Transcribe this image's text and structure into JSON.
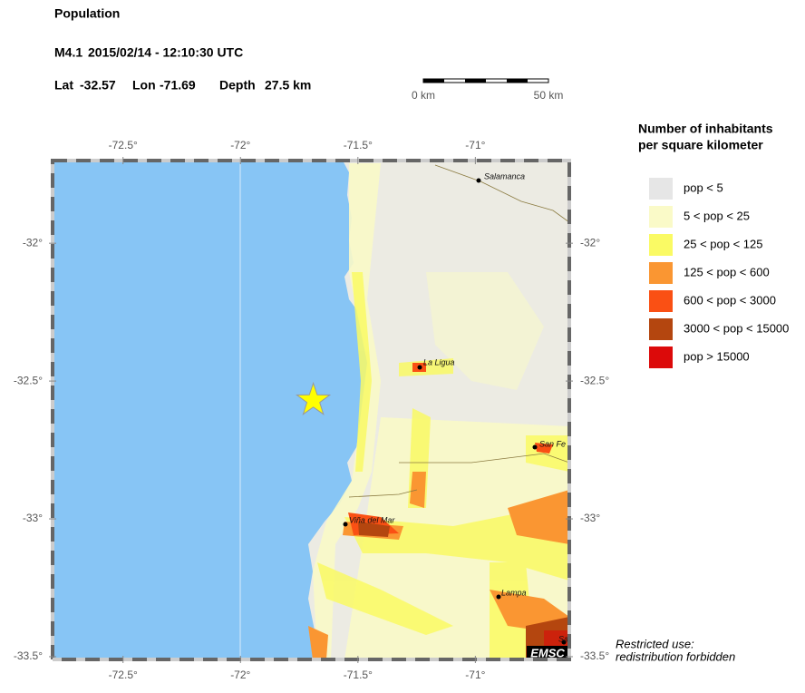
{
  "header": {
    "title": "Population",
    "event": {
      "magnitude": "M4.1",
      "datetime": "2015/02/14 - 12:10:30 UTC",
      "lat_label": "Lat",
      "lat": -32.57,
      "lon_label": "Lon",
      "lon": -71.69,
      "depth_label": "Depth",
      "depth": "27.5 km"
    }
  },
  "scale_bar": {
    "start": "0 km",
    "end": "50 km"
  },
  "map": {
    "xlim": [
      -72.8,
      -70.6
    ],
    "ylim": [
      -33.51,
      -31.7
    ],
    "xticks": [
      {
        "value": -72.5,
        "label": "-72.5°"
      },
      {
        "value": -72,
        "label": "-72°"
      },
      {
        "value": -71.5,
        "label": "-71.5°"
      },
      {
        "value": -71,
        "label": "-71°"
      }
    ],
    "yticks": [
      {
        "value": -32,
        "label": "-32°"
      },
      {
        "value": -32.5,
        "label": "-32.5°"
      },
      {
        "value": -33,
        "label": "-33°"
      },
      {
        "value": -33.5,
        "label": "-33.5°"
      }
    ],
    "cities": [
      "Salamanca",
      "La Ligua",
      "San Fe",
      "Viña del Mar",
      "Lampa",
      "Sa"
    ],
    "logo": "EMSC"
  },
  "legend": {
    "title": [
      "Number of inhabitants",
      "per square kilometer"
    ],
    "items": [
      {
        "label": "pop < 5",
        "color": "#e6e6e6"
      },
      {
        "label": "5 < pop < 25",
        "color": "#fafac8"
      },
      {
        "label": "25 < pop < 125",
        "color": "#fafa64"
      },
      {
        "label": "125 < pop < 600",
        "color": "#fa9632"
      },
      {
        "label": "600 < pop < 3000",
        "color": "#fa5014"
      },
      {
        "label": "3000 < pop < 15000",
        "color": "#b4460f"
      },
      {
        "label": "pop > 15000",
        "color": "#dc0a0a"
      }
    ]
  },
  "notice": [
    "Restricted use:",
    "redistribution forbidden"
  ]
}
